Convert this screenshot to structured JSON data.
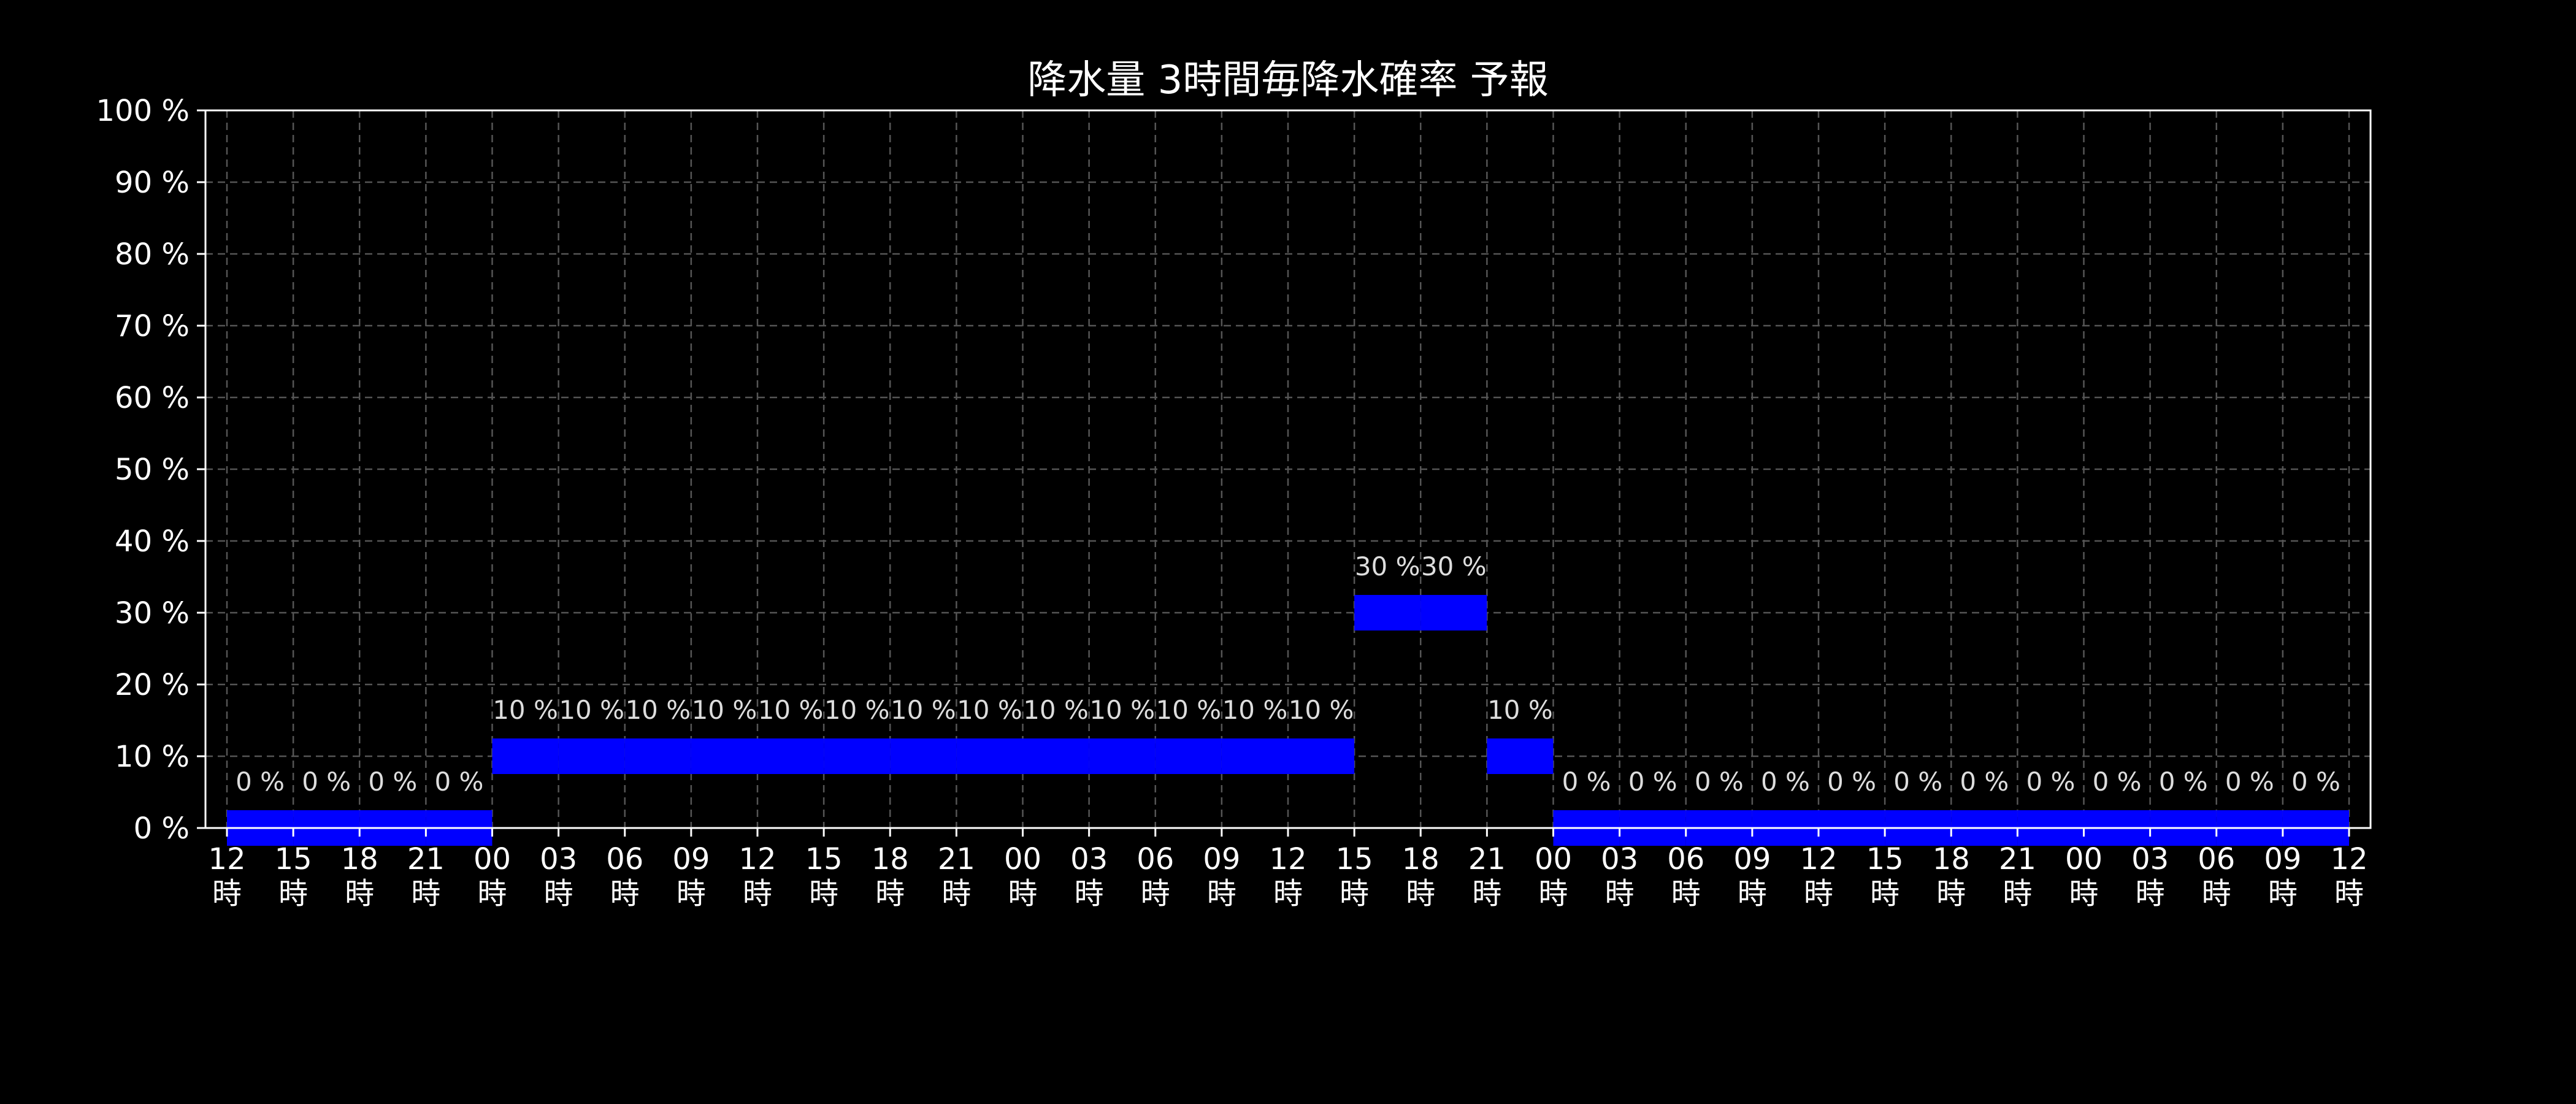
{
  "chart_data": {
    "type": "bar",
    "title": "降水量 3時間毎降水確率 予報",
    "xlabel": "",
    "ylabel": "",
    "ylim": [
      0,
      100
    ],
    "grid": true,
    "y_ticks": [
      "0 %",
      "10 %",
      "20 %",
      "30 %",
      "40 %",
      "50 %",
      "60 %",
      "70 %",
      "80 %",
      "90 %",
      "100 %"
    ],
    "x_ticks": [
      {
        "hour": "12",
        "sub": "時"
      },
      {
        "hour": "15",
        "sub": "時"
      },
      {
        "hour": "18",
        "sub": "時"
      },
      {
        "hour": "21",
        "sub": "時"
      },
      {
        "hour": "00",
        "sub": "時"
      },
      {
        "hour": "03",
        "sub": "時"
      },
      {
        "hour": "06",
        "sub": "時"
      },
      {
        "hour": "09",
        "sub": "時"
      },
      {
        "hour": "12",
        "sub": "時"
      },
      {
        "hour": "15",
        "sub": "時"
      },
      {
        "hour": "18",
        "sub": "時"
      },
      {
        "hour": "21",
        "sub": "時"
      },
      {
        "hour": "00",
        "sub": "時"
      },
      {
        "hour": "03",
        "sub": "時"
      },
      {
        "hour": "06",
        "sub": "時"
      },
      {
        "hour": "09",
        "sub": "時"
      },
      {
        "hour": "12",
        "sub": "時"
      },
      {
        "hour": "15",
        "sub": "時"
      },
      {
        "hour": "18",
        "sub": "時"
      },
      {
        "hour": "21",
        "sub": "時"
      },
      {
        "hour": "00",
        "sub": "時"
      },
      {
        "hour": "03",
        "sub": "時"
      },
      {
        "hour": "06",
        "sub": "時"
      },
      {
        "hour": "09",
        "sub": "時"
      },
      {
        "hour": "12",
        "sub": "時"
      },
      {
        "hour": "15",
        "sub": "時"
      },
      {
        "hour": "18",
        "sub": "時"
      },
      {
        "hour": "21",
        "sub": "時"
      },
      {
        "hour": "00",
        "sub": "時"
      },
      {
        "hour": "03",
        "sub": "時"
      },
      {
        "hour": "06",
        "sub": "時"
      },
      {
        "hour": "09",
        "sub": "時"
      },
      {
        "hour": "12",
        "sub": "時"
      }
    ],
    "values": [
      0,
      0,
      0,
      0,
      10,
      10,
      10,
      10,
      10,
      10,
      10,
      10,
      10,
      10,
      10,
      10,
      10,
      30,
      30,
      10,
      0,
      0,
      0,
      0,
      0,
      0,
      0,
      0,
      0,
      0,
      0,
      0
    ],
    "value_labels": [
      "0 %",
      "0 %",
      "0 %",
      "0 %",
      "10 %",
      "10 %",
      "10 %",
      "10 %",
      "10 %",
      "10 %",
      "10 %",
      "10 %",
      "10 %",
      "10 %",
      "10 %",
      "10 %",
      "10 %",
      "30 %",
      "30 %",
      "10 %",
      "0 %",
      "0 %",
      "0 %",
      "0 %",
      "0 %",
      "0 %",
      "0 %",
      "0 %",
      "0 %",
      "0 %",
      "0 %",
      "0 %"
    ],
    "colors": {
      "background": "#000000",
      "bar": "#0000ff",
      "axis": "#ffffff",
      "grid": "#555555",
      "text": "#ffffff",
      "label_text": "#dddddd"
    }
  }
}
